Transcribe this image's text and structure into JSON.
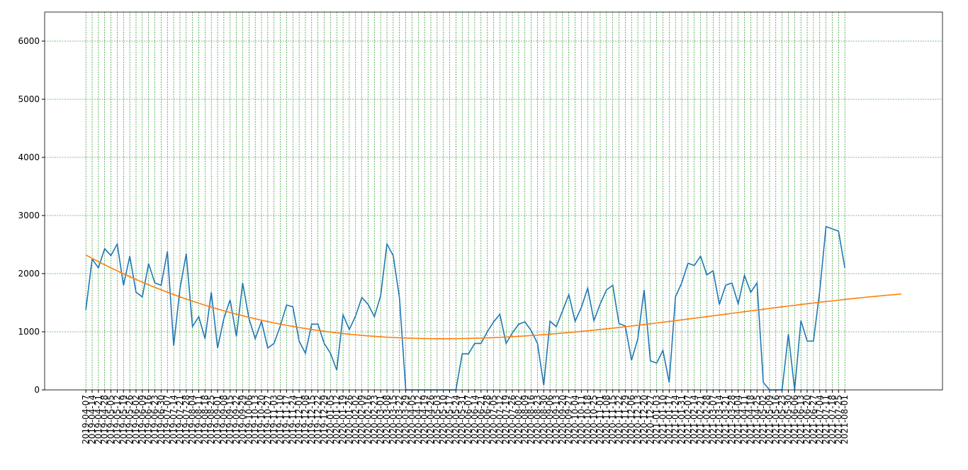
{
  "chart_data": {
    "type": "line",
    "x": [
      "2019-04-07",
      "2019-04-14",
      "2019-04-21",
      "2019-04-28",
      "2019-05-05",
      "2019-05-12",
      "2019-05-19",
      "2019-05-26",
      "2019-06-02",
      "2019-06-09",
      "2019-06-16",
      "2019-06-23",
      "2019-06-30",
      "2019-07-07",
      "2019-07-14",
      "2019-07-21",
      "2019-07-28",
      "2019-08-04",
      "2019-08-11",
      "2019-08-18",
      "2019-08-25",
      "2019-09-01",
      "2019-09-08",
      "2019-09-15",
      "2019-09-22",
      "2019-09-29",
      "2019-10-06",
      "2019-10-13",
      "2019-10-20",
      "2019-10-27",
      "2019-11-03",
      "2019-11-10",
      "2019-11-17",
      "2019-11-24",
      "2019-12-01",
      "2019-12-08",
      "2019-12-15",
      "2019-12-22",
      "2019-12-29",
      "2020-01-05",
      "2020-01-12",
      "2020-01-19",
      "2020-01-26",
      "2020-02-02",
      "2020-02-09",
      "2020-02-16",
      "2020-02-23",
      "2020-03-01",
      "2020-03-08",
      "2020-03-15",
      "2020-03-22",
      "2020-03-29",
      "2020-04-05",
      "2020-04-12",
      "2020-04-19",
      "2020-04-26",
      "2020-05-03",
      "2020-05-10",
      "2020-05-17",
      "2020-05-24",
      "2020-05-31",
      "2020-06-07",
      "2020-06-14",
      "2020-06-21",
      "2020-06-28",
      "2020-07-05",
      "2020-07-12",
      "2020-07-19",
      "2020-07-26",
      "2020-08-02",
      "2020-08-09",
      "2020-08-16",
      "2020-08-23",
      "2020-08-30",
      "2020-09-06",
      "2020-09-13",
      "2020-09-20",
      "2020-09-27",
      "2020-10-04",
      "2020-10-11",
      "2020-10-18",
      "2020-10-25",
      "2020-11-01",
      "2020-11-08",
      "2020-11-15",
      "2020-11-22",
      "2020-11-29",
      "2020-12-06",
      "2020-12-13",
      "2020-12-20",
      "2020-12-27",
      "2021-01-03",
      "2021-01-10",
      "2021-01-17",
      "2021-01-24",
      "2021-01-31",
      "2021-02-07",
      "2021-02-14",
      "2021-02-21",
      "2021-02-28",
      "2021-03-07",
      "2021-03-14",
      "2021-03-21",
      "2021-03-28",
      "2021-04-04",
      "2021-04-11",
      "2021-04-18",
      "2021-04-25",
      "2021-05-02",
      "2021-05-09",
      "2021-05-16",
      "2021-05-23",
      "2021-05-30",
      "2021-06-06",
      "2021-06-13",
      "2021-06-20",
      "2021-06-27",
      "2021-07-04",
      "2021-07-11",
      "2021-07-18",
      "2021-07-25",
      "2021-08-01",
      "2021-08-08",
      "2021-08-15",
      "2021-08-22",
      "2021-08-29",
      "2021-09-05",
      "2021-09-12",
      "2021-09-19",
      "2021-09-26",
      "2021-10-03"
    ],
    "xticks": [
      "2019-04-07",
      "2019-04-14",
      "2019-04-21",
      "2019-04-28",
      "2019-05-05",
      "2019-05-12",
      "2019-05-19",
      "2019-05-26",
      "2019-06-02",
      "2019-06-09",
      "2019-06-16",
      "2019-06-23",
      "2019-06-30",
      "2019-07-07",
      "2019-07-14",
      "2019-07-21",
      "2019-07-28",
      "2019-08-04",
      "2019-08-11",
      "2019-08-18",
      "2019-08-25",
      "2019-09-01",
      "2019-09-08",
      "2019-09-15",
      "2019-09-22",
      "2019-09-29",
      "2019-10-06",
      "2019-10-13",
      "2019-10-20",
      "2019-10-27",
      "2019-11-03",
      "2019-11-10",
      "2019-11-17",
      "2019-11-24",
      "2019-12-01",
      "2019-12-08",
      "2019-12-15",
      "2019-12-22",
      "2019-12-29",
      "2020-01-05",
      "2020-01-12",
      "2020-01-19",
      "2020-01-26",
      "2020-02-02",
      "2020-02-09",
      "2020-02-16",
      "2020-02-23",
      "2020-03-01",
      "2020-03-08",
      "2020-03-15",
      "2020-03-22",
      "2020-03-29",
      "2020-04-05",
      "2020-04-12",
      "2020-04-19",
      "2020-04-26",
      "2020-05-03",
      "2020-05-10",
      "2020-05-17",
      "2020-05-24",
      "2020-05-31",
      "2020-06-07",
      "2020-06-14",
      "2020-06-21",
      "2020-06-28",
      "2020-07-05",
      "2020-07-12",
      "2020-07-19",
      "2020-07-26",
      "2020-08-02",
      "2020-08-09",
      "2020-08-16",
      "2020-08-23",
      "2020-08-30",
      "2020-09-06",
      "2020-09-13",
      "2020-09-20",
      "2020-09-27",
      "2020-10-04",
      "2020-10-11",
      "2020-10-18",
      "2020-10-25",
      "2020-11-01",
      "2020-11-08",
      "2020-11-15",
      "2020-11-22",
      "2020-11-29",
      "2020-12-06",
      "2020-12-13",
      "2020-12-20",
      "2020-12-27",
      "2021-01-03",
      "2021-01-10",
      "2021-01-17",
      "2021-01-24",
      "2021-01-31",
      "2021-02-07",
      "2021-02-14",
      "2021-02-21",
      "2021-02-28",
      "2021-03-07",
      "2021-03-14",
      "2021-03-21",
      "2021-03-28",
      "2021-04-04",
      "2021-04-11",
      "2021-04-18",
      "2021-04-25",
      "2021-05-02",
      "2021-05-09",
      "2021-05-16",
      "2021-05-23",
      "2021-05-30",
      "2021-06-06",
      "2021-06-13",
      "2021-06-20",
      "2021-06-27",
      "2021-07-04",
      "2021-07-11",
      "2021-07-18",
      "2021-07-25",
      "2021-08-01"
    ],
    "series": [
      {
        "color": "#1f77b4",
        "values": [
          1380,
          2250,
          2100,
          2430,
          2310,
          2510,
          1800,
          2300,
          1680,
          1600,
          2170,
          1840,
          1800,
          2380,
          760,
          1740,
          2340,
          1090,
          1260,
          880,
          1680,
          720,
          1230,
          1550,
          920,
          1840,
          1230,
          880,
          1180,
          720,
          800,
          1100,
          1460,
          1430,
          840,
          630,
          1130,
          1130,
          800,
          630,
          340,
          1290,
          1040,
          1270,
          1590,
          1470,
          1260,
          1620,
          2510,
          2310,
          1580,
          0,
          0,
          0,
          0,
          0,
          0,
          0,
          0,
          0,
          620,
          620,
          800,
          800,
          1000,
          1170,
          1300,
          800,
          980,
          1130,
          1170,
          1020,
          800,
          80,
          1180,
          1090,
          1360,
          1640,
          1180,
          1420,
          1750,
          1190,
          1480,
          1720,
          1800,
          1140,
          1100,
          510,
          880,
          1720,
          500,
          460,
          680,
          130,
          1600,
          1840,
          2180,
          2140,
          2300,
          1980,
          2050,
          1470,
          1800,
          1840,
          1480,
          1970,
          1680,
          1840,
          130,
          0,
          0,
          0,
          960,
          0,
          1190,
          840,
          840,
          1700,
          2810,
          2770,
          2730,
          2100,
          null,
          null,
          null,
          null,
          null,
          null,
          null,
          null,
          null
        ]
      },
      {
        "color": "#ff7f0e",
        "values": [
          2320,
          2263,
          2207,
          2152,
          2099,
          2047,
          1997,
          1948,
          1900,
          1853,
          1808,
          1764,
          1722,
          1680,
          1640,
          1601,
          1563,
          1527,
          1491,
          1457,
          1424,
          1392,
          1361,
          1331,
          1303,
          1275,
          1248,
          1223,
          1199,
          1175,
          1153,
          1131,
          1111,
          1092,
          1073,
          1056,
          1039,
          1023,
          1008,
          995,
          982,
          969,
          958,
          948,
          938,
          929,
          921,
          914,
          907,
          901,
          896,
          892,
          888,
          885,
          883,
          881,
          880,
          880,
          880,
          881,
          883,
          885,
          888,
          891,
          895,
          899,
          904,
          909,
          915,
          921,
          928,
          935,
          942,
          951,
          959,
          968,
          977,
          986,
          996,
          1007,
          1017,
          1028,
          1039,
          1051,
          1062,
          1074,
          1087,
          1099,
          1112,
          1124,
          1137,
          1151,
          1164,
          1177,
          1191,
          1205,
          1219,
          1232,
          1246,
          1260,
          1275,
          1289,
          1303,
          1317,
          1331,
          1345,
          1359,
          1373,
          1387,
          1401,
          1415,
          1429,
          1442,
          1455,
          1469,
          1482,
          1495,
          1507,
          1520,
          1532,
          1544,
          1556,
          1568,
          1579,
          1590,
          1601,
          1611,
          1621,
          1631,
          1640,
          1650
        ]
      }
    ],
    "xlim": [
      "2019-02-20",
      "2021-11-18"
    ],
    "ylim": [
      0,
      6500
    ],
    "yticks": [
      0,
      1000,
      2000,
      3000,
      4000,
      5000,
      6000
    ],
    "grid": true,
    "grid_color": "#008000"
  }
}
